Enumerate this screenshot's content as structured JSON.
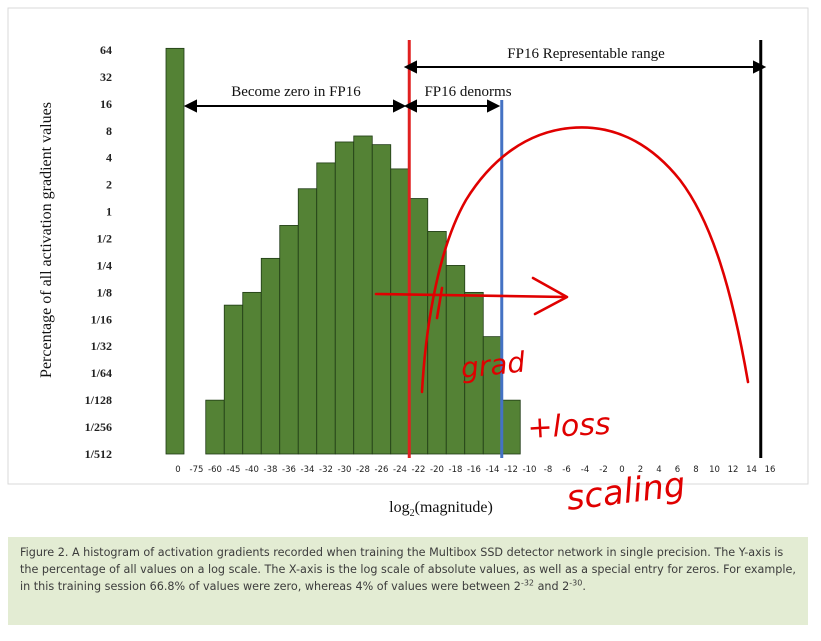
{
  "chart_data": {
    "type": "bar",
    "title": "",
    "xlabel": "log",
    "xlabel_sub": "2",
    "xlabel_rest": "(magnitude)",
    "ylabel": "Percentage of all activation gradient values",
    "y_scale": "log2",
    "y_ticks": [
      "64",
      "32",
      "16",
      "8",
      "4",
      "2",
      "1",
      "1/2",
      "1/4",
      "1/8",
      "1/16",
      "1/32",
      "1/64",
      "1/128",
      "1/256",
      "1/512"
    ],
    "x_ticks": [
      "0",
      "-75",
      "-60",
      "-45",
      "-40",
      "-38",
      "-36",
      "-34",
      "-32",
      "-30",
      "-28",
      "-26",
      "-24",
      "-22",
      "-20",
      "-18",
      "-16",
      "-14",
      "-12",
      "-10",
      "-8",
      "-6",
      "-4",
      "-2",
      "0",
      "2",
      "4",
      "6",
      "8",
      "10",
      "12",
      "14",
      "16"
    ],
    "bars": [
      {
        "x": "0",
        "value": 66.8
      },
      {
        "x": "-60",
        "value": 0.0078
      },
      {
        "x": "-45",
        "value": 0.09
      },
      {
        "x": "-40",
        "value": 0.125
      },
      {
        "x": "-38",
        "value": 0.3
      },
      {
        "x": "-36",
        "value": 0.7
      },
      {
        "x": "-34",
        "value": 1.8
      },
      {
        "x": "-32",
        "value": 3.5
      },
      {
        "x": "-30",
        "value": 6.0
      },
      {
        "x": "-28",
        "value": 7.0
      },
      {
        "x": "-26",
        "value": 5.6
      },
      {
        "x": "-24",
        "value": 3.0
      },
      {
        "x": "-22",
        "value": 1.4
      },
      {
        "x": "-20",
        "value": 0.6
      },
      {
        "x": "-18",
        "value": 0.25
      },
      {
        "x": "-16",
        "value": 0.125
      },
      {
        "x": "-14",
        "value": 0.04
      },
      {
        "x": "-12",
        "value": 0.0078
      }
    ],
    "vertical_lines": [
      {
        "x": "-24",
        "color": "#e02020"
      },
      {
        "x": "-14",
        "color": "#4472c4"
      },
      {
        "x": "16",
        "color": "#000000"
      }
    ],
    "annotations": {
      "zero_label": "Become zero in FP16",
      "denorm_label": "FP16 denorms",
      "range_label": "FP16 Representable range"
    },
    "handwriting": [
      "grad",
      "+loss",
      "scaling"
    ],
    "colors": {
      "bar": "#548235",
      "bar_edge": "#1e3a14",
      "handwriting": "#e00000"
    }
  },
  "caption": {
    "part1": "Figure 2. A histogram of activation gradients recorded when training the Multibox SSD detector network in single precision. The Y-axis is the percentage of all values on a log scale. The X-axis is the log scale of absolute values, as well as a special entry for zeros. For example, in this training session 66.8% of values were zero, whereas 4% of values were between 2",
    "sup1": "-32",
    "part2": " and 2",
    "sup2": "-30",
    "part3": "."
  }
}
